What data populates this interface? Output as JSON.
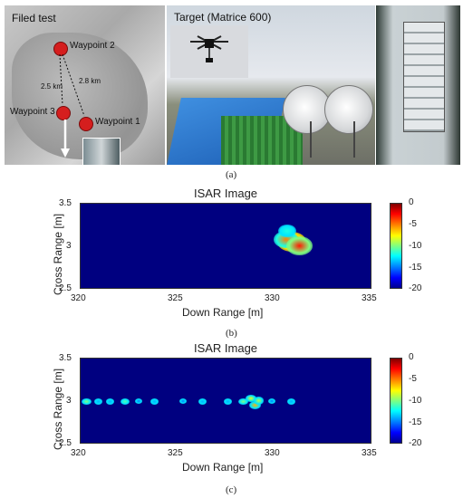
{
  "panel_a": {
    "map_title": "Filed test",
    "waypoints": [
      {
        "label": "Waypoint 2"
      },
      {
        "label": "Waypoint 3"
      },
      {
        "label": "Waypoint 1"
      }
    ],
    "distances": [
      "2.5 km",
      "2.8 km"
    ],
    "target_title": "Target (Matrice 600)",
    "caption": "(a)"
  },
  "chart_data": [
    {
      "type": "heatmap",
      "title": "ISAR Image",
      "xlabel": "Down Range [m]",
      "ylabel": "Cross Range [m]",
      "xlim": [
        320,
        335
      ],
      "ylim": [
        2.5,
        3.5
      ],
      "x_ticks": [
        "320",
        "325",
        "330",
        "335"
      ],
      "y_ticks": [
        "3.5",
        "3",
        "2.5"
      ],
      "colorbar_range": [
        -20,
        0
      ],
      "colorbar_ticks": [
        "0",
        "-5",
        "-10",
        "-15",
        "-20"
      ],
      "colormap": "jet",
      "background_value": -20,
      "hotspots": [
        {
          "x": 330.9,
          "y": 3.05,
          "value": 0
        },
        {
          "x": 330.6,
          "y": 3.08,
          "value": -5
        },
        {
          "x": 331.3,
          "y": 3.0,
          "value": -3
        },
        {
          "x": 330.7,
          "y": 3.18,
          "value": -12
        }
      ],
      "caption": "(b)"
    },
    {
      "type": "heatmap",
      "title": "ISAR Image",
      "xlabel": "Down Range [m]",
      "ylabel": "Cross Range [m]",
      "xlim": [
        320,
        335
      ],
      "ylim": [
        2.5,
        3.5
      ],
      "x_ticks": [
        "320",
        "325",
        "330",
        "335"
      ],
      "y_ticks": [
        "3.5",
        "3",
        "2.5"
      ],
      "colorbar_range": [
        -20,
        0
      ],
      "colorbar_ticks": [
        "0",
        "-5",
        "-10",
        "-15",
        "-20"
      ],
      "colormap": "jet",
      "background_value": -20,
      "hotspots": [
        {
          "x": 320.3,
          "y": 2.99,
          "value": -10
        },
        {
          "x": 320.9,
          "y": 2.99,
          "value": -14
        },
        {
          "x": 321.5,
          "y": 2.99,
          "value": -14
        },
        {
          "x": 322.3,
          "y": 2.99,
          "value": -11
        },
        {
          "x": 323.0,
          "y": 2.99,
          "value": -15
        },
        {
          "x": 323.8,
          "y": 2.99,
          "value": -14
        },
        {
          "x": 325.3,
          "y": 2.99,
          "value": -15
        },
        {
          "x": 326.3,
          "y": 2.99,
          "value": -14
        },
        {
          "x": 327.6,
          "y": 2.99,
          "value": -14
        },
        {
          "x": 328.4,
          "y": 2.99,
          "value": -10
        },
        {
          "x": 328.8,
          "y": 3.03,
          "value": -8
        },
        {
          "x": 329.0,
          "y": 2.95,
          "value": -6
        },
        {
          "x": 329.2,
          "y": 3.0,
          "value": -9
        },
        {
          "x": 329.9,
          "y": 2.99,
          "value": -15
        },
        {
          "x": 330.9,
          "y": 2.99,
          "value": -14
        }
      ],
      "caption": "(c)"
    }
  ]
}
